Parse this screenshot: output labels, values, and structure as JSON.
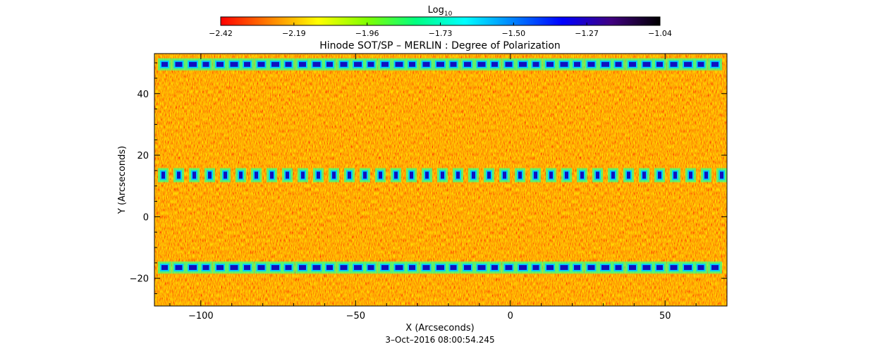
{
  "chart_data": {
    "type": "heatmap",
    "title": "Hinode SOT/SP – MERLIN : Degree of Polarization",
    "colorbar": {
      "label_base": "Log",
      "label_sub": "10",
      "ticks": [
        "−2.42",
        "−2.19",
        "−1.96",
        "−1.73",
        "−1.50",
        "−1.27",
        "−1.04"
      ],
      "range": [
        -2.42,
        -1.04
      ],
      "colormap": [
        "#ff0000",
        "#ff8000",
        "#ffff00",
        "#80ff00",
        "#00ff80",
        "#00ffff",
        "#0080ff",
        "#0000ff",
        "#400080",
        "#000000"
      ]
    },
    "xlabel": "X (Arcseconds)",
    "ylabel": "Y (Arcseconds)",
    "xlim": [
      -115,
      70
    ],
    "ylim": [
      -29,
      53
    ],
    "xticks": [
      -100,
      -50,
      0,
      50
    ],
    "yticks": [
      -20,
      0,
      20,
      40
    ],
    "xticklabels": [
      "−100",
      "−50",
      "0",
      "50"
    ],
    "yticklabels": [
      "−20",
      "0",
      "20",
      "40"
    ],
    "bands": [
      {
        "y": 49.5,
        "value": -1.3
      },
      {
        "y": 13.5,
        "value": -1.45
      },
      {
        "y": -16.5,
        "value": -1.25
      }
    ],
    "background_value": -2.2,
    "timestamp": "3–Oct–2016 08:00:54.245"
  }
}
